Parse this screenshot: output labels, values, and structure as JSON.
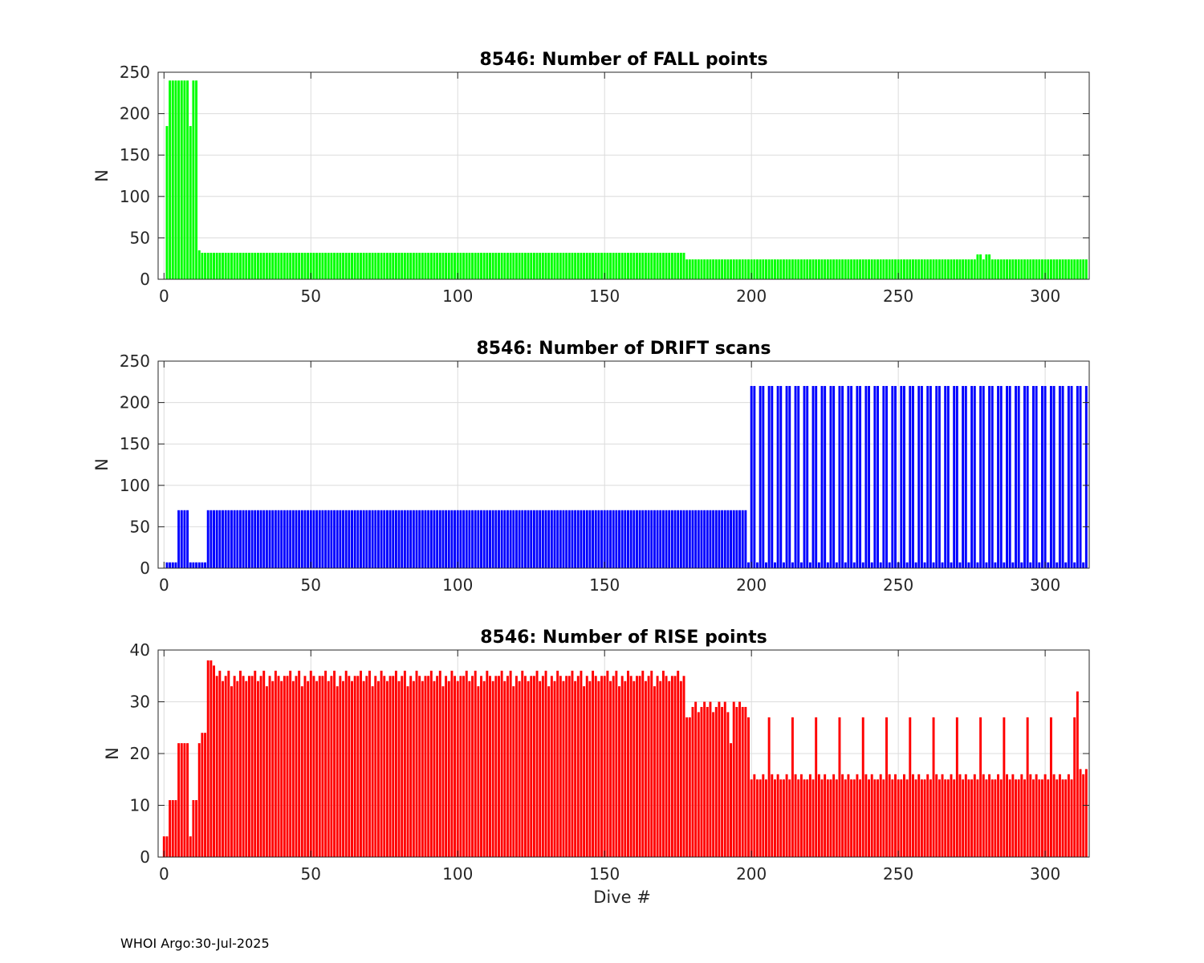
{
  "footer": "WHOI Argo:30-Jul-2025",
  "chart_data": [
    {
      "type": "bar",
      "title": "8546: Number of FALL points",
      "ylabel": "N",
      "xlabel": "",
      "color": "#00ff00",
      "xlim": [
        -2,
        315
      ],
      "ylim": [
        0,
        250
      ],
      "xticks": [
        0,
        50,
        100,
        150,
        200,
        250,
        300
      ],
      "yticks": [
        0,
        50,
        100,
        150,
        200,
        250
      ],
      "grid": true,
      "segments": [
        {
          "from": 1,
          "to": 1,
          "value": 185
        },
        {
          "from": 2,
          "to": 8,
          "value": 240
        },
        {
          "from": 9,
          "to": 9,
          "value": 185
        },
        {
          "from": 10,
          "to": 11,
          "value": 240
        },
        {
          "from": 12,
          "to": 12,
          "value": 35
        },
        {
          "from": 13,
          "to": 177,
          "value": 32
        },
        {
          "from": 178,
          "to": 276,
          "value": 24
        },
        {
          "from": 277,
          "to": 278,
          "value": 30
        },
        {
          "from": 279,
          "to": 279,
          "value": 24
        },
        {
          "from": 280,
          "to": 281,
          "value": 30
        },
        {
          "from": 282,
          "to": 314,
          "value": 24
        }
      ]
    },
    {
      "type": "bar",
      "title": "8546: Number of DRIFT scans",
      "ylabel": "N",
      "xlabel": "",
      "color": "#0000ff",
      "xlim": [
        -2,
        315
      ],
      "ylim": [
        0,
        250
      ],
      "xticks": [
        0,
        50,
        100,
        150,
        200,
        250,
        300
      ],
      "yticks": [
        0,
        50,
        100,
        150,
        200,
        250
      ],
      "grid": true,
      "segments": [
        {
          "from": 1,
          "to": 4,
          "value": 7
        },
        {
          "from": 5,
          "to": 8,
          "value": 70
        },
        {
          "from": 9,
          "to": 14,
          "value": 7
        },
        {
          "from": 15,
          "to": 198,
          "value": 70
        },
        {
          "from": 199,
          "to": 199,
          "value": 7
        },
        {
          "from": 200,
          "to": 314,
          "pattern": [
            220,
            220,
            7
          ],
          "value": 220
        }
      ]
    },
    {
      "type": "bar",
      "title": "8546: Number of RISE points",
      "ylabel": "N",
      "xlabel": "Dive #",
      "color": "#ff0000",
      "xlim": [
        -2,
        315
      ],
      "ylim": [
        0,
        40
      ],
      "xticks": [
        0,
        50,
        100,
        150,
        200,
        250,
        300
      ],
      "yticks": [
        0,
        10,
        20,
        30,
        40
      ],
      "grid": true,
      "segments": [
        {
          "from": 0,
          "to": 1,
          "value": 4
        },
        {
          "from": 2,
          "to": 4,
          "value": 11
        },
        {
          "from": 5,
          "to": 8,
          "value": 22
        },
        {
          "from": 9,
          "to": 9,
          "value": 4
        },
        {
          "from": 10,
          "to": 11,
          "value": 11
        },
        {
          "from": 12,
          "to": 12,
          "value": 22
        },
        {
          "from": 13,
          "to": 14,
          "value": 24
        },
        {
          "from": 15,
          "to": 16,
          "value": 38
        },
        {
          "from": 17,
          "to": 17,
          "value": 37
        },
        {
          "from": 18,
          "to": 177,
          "pattern": [
            35,
            36,
            34,
            35,
            36,
            33,
            35,
            34,
            36,
            35,
            34,
            35
          ],
          "value": 35
        },
        {
          "from": 178,
          "to": 179,
          "value": 27
        },
        {
          "from": 180,
          "to": 196,
          "pattern": [
            29,
            30,
            28,
            29,
            30
          ],
          "value": 29
        },
        {
          "from": 193,
          "to": 193,
          "value": 22
        },
        {
          "from": 197,
          "to": 198,
          "value": 29
        },
        {
          "from": 199,
          "to": 199,
          "value": 27
        },
        {
          "from": 200,
          "to": 310,
          "pattern": [
            15,
            16,
            15,
            15,
            16,
            15,
            27,
            16
          ],
          "value": 15
        },
        {
          "from": 311,
          "to": 311,
          "value": 32
        },
        {
          "from": 312,
          "to": 312,
          "value": 17
        },
        {
          "from": 313,
          "to": 313,
          "value": 16
        },
        {
          "from": 314,
          "to": 314,
          "value": 17
        }
      ]
    }
  ]
}
